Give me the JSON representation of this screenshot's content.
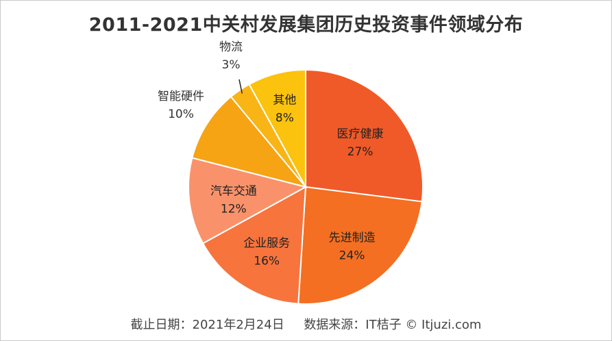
{
  "chart_data": {
    "type": "pie",
    "title": "2011-2021中关村发展集团历史投资事件领域分布",
    "slices": [
      {
        "label": "医疗健康",
        "value": 27,
        "display": "27%",
        "color": "#F05A28",
        "label_position": "inside"
      },
      {
        "label": "先进制造",
        "value": 24,
        "display": "24%",
        "color": "#F46F22",
        "label_position": "inside"
      },
      {
        "label": "企业服务",
        "value": 16,
        "display": "16%",
        "color": "#F7743D",
        "label_position": "inside"
      },
      {
        "label": "汽车交通",
        "value": 12,
        "display": "12%",
        "color": "#F9926B",
        "label_position": "inside"
      },
      {
        "label": "智能硬件",
        "value": 10,
        "display": "10%",
        "color": "#F6A314",
        "label_position": "outside"
      },
      {
        "label": "物流",
        "value": 3,
        "display": "3%",
        "color": "#F9B416",
        "label_position": "outside"
      },
      {
        "label": "其他",
        "value": 8,
        "display": "8%",
        "color": "#FBC20E",
        "label_position": "inside"
      }
    ],
    "start": "12 o'clock",
    "direction": "clockwise"
  },
  "footer": {
    "date_text": "截止日期：2021年2月24日",
    "source_text": "数据来源：IT桔子 © Itjuzi.com"
  }
}
